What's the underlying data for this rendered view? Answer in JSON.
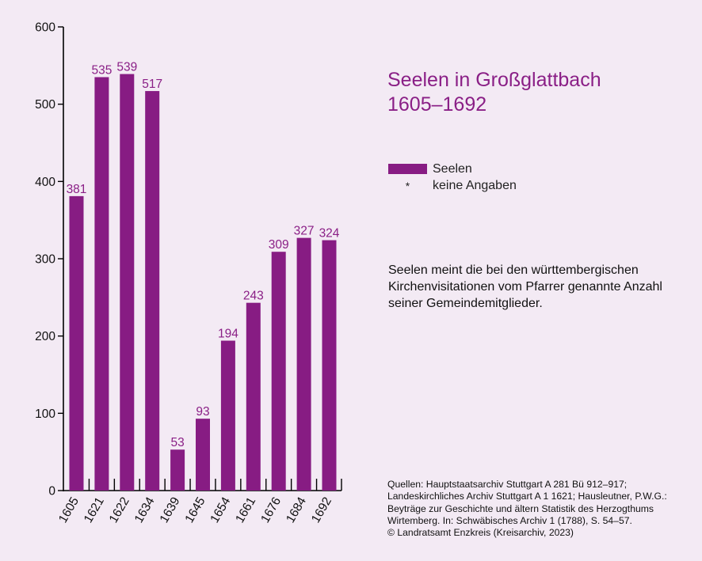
{
  "title": {
    "line1": "Seelen in Großglattbach",
    "line2": "1605–1692"
  },
  "legend": {
    "series_label": "Seelen",
    "no_data_symbol": "*",
    "no_data_label": "keine Angaben"
  },
  "note": "Seelen meint die bei den württembergischen Kirchenvisitationen vom Pfarrer genannte Anzahl seiner Gemeindemitglieder.",
  "source": {
    "lines": [
      "Quellen: Hauptstaatsarchiv Stuttgart A 281 Bü 912–917;",
      "Landeskirchliches Archiv Stuttgart A 1 1621; Hausleutner, P.W.G.:",
      "Beyträge zur Geschichte und ältern Statistik des Herzogthums",
      "Wirtemberg. In: Schwäbisches Archiv 1 (1788), S. 54–57.",
      "© Landratsamt Enzkreis (Kreisarchiv, 2023)"
    ]
  },
  "colors": {
    "bar": "#871c83",
    "label": "#8a1f86",
    "background": "#f3eaf4",
    "axis": "#000000"
  },
  "chart_data": {
    "type": "bar",
    "categories": [
      "1605",
      "1621",
      "1622",
      "1634",
      "1639",
      "1645",
      "1654",
      "1661",
      "1676",
      "1684",
      "1692"
    ],
    "series": [
      {
        "name": "Seelen",
        "values": [
          381,
          535,
          539,
          517,
          53,
          93,
          194,
          243,
          309,
          327,
          324
        ]
      }
    ],
    "ylim": [
      0,
      600
    ],
    "yticks": [
      0,
      100,
      200,
      300,
      400,
      500,
      600
    ],
    "ytick_labels": [
      "0",
      "100",
      "200",
      "300",
      "400",
      "500",
      "600"
    ],
    "data_labels": true,
    "grid": false,
    "legend_position": "right"
  }
}
